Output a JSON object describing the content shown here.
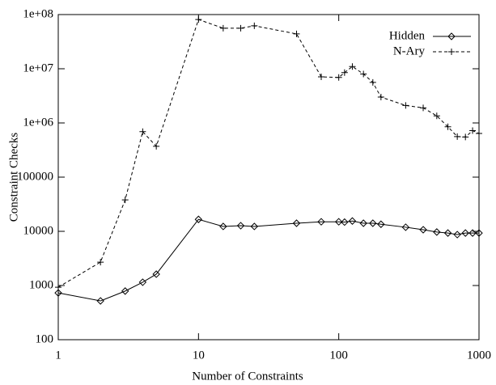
{
  "chart_data": {
    "type": "line",
    "x_label": "Number of Constraints",
    "y_label": "Constraint Checks",
    "x_log": true,
    "y_log": true,
    "xlim": [
      1,
      1000
    ],
    "xticks": [
      1,
      10,
      100,
      1000
    ],
    "ylim": [
      100,
      100000000
    ],
    "yticks": [
      100,
      1000,
      10000,
      100000,
      {
        "value": 1000000,
        "label": "1e+06"
      },
      {
        "value": 10000000,
        "label": "1e+07"
      },
      {
        "value": 100000000,
        "label": "1e+08"
      }
    ],
    "legend": "upper right",
    "x": [
      1,
      2,
      3,
      4,
      5,
      10,
      15,
      20,
      25,
      50,
      75,
      100,
      110,
      125,
      150,
      175,
      200,
      300,
      400,
      500,
      600,
      700,
      800,
      900,
      1000
    ],
    "series": [
      {
        "name": "Hidden",
        "color": "#000000",
        "line_style": "solid",
        "marker": "diamond",
        "values": [
          730,
          520,
          790,
          1150,
          1620,
          16600,
          12300,
          12700,
          12300,
          14100,
          15000,
          15000,
          14800,
          15500,
          14100,
          14100,
          13500,
          11900,
          10700,
          9700,
          9300,
          8700,
          9300,
          9300,
          9300
        ]
      },
      {
        "name": "N-Ary",
        "color": "#000000",
        "line_style": "dashed",
        "marker": "plus",
        "values": [
          930,
          2700,
          38000,
          690000,
          370000,
          81000000,
          56000000,
          56000000,
          62000000,
          44000000,
          7100000,
          6900000,
          8500000,
          11000000,
          8000000,
          5600000,
          3000000,
          2100000,
          1900000,
          1350000,
          850000,
          560000,
          550000,
          720000,
          640000
        ]
      }
    ]
  }
}
